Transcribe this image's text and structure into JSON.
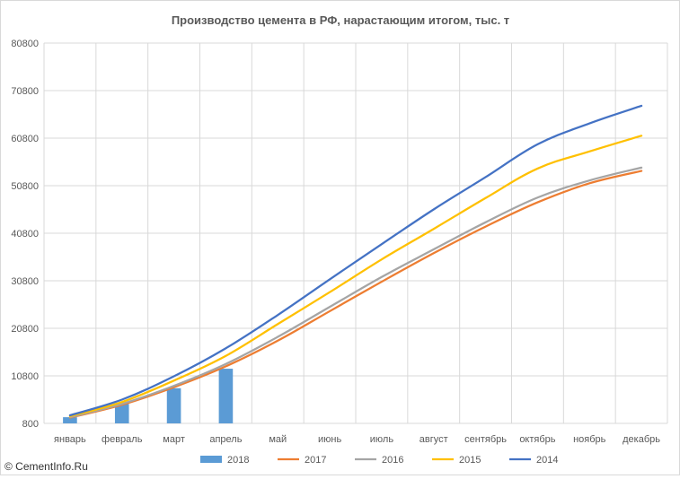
{
  "chart_data": {
    "type": "bar+line",
    "title": "Производство цемента в РФ, нарастающим итогом, тыс. т",
    "categories": [
      "январь",
      "февраль",
      "март",
      "апрель",
      "май",
      "июнь",
      "июль",
      "август",
      "сентябрь",
      "октябрь",
      "ноябрь",
      "декабрь"
    ],
    "y_ticks": [
      "80800",
      "70800",
      "60800",
      "50800",
      "40800",
      "30800",
      "20800",
      "10800",
      "800"
    ],
    "ylim": [
      800,
      80800
    ],
    "grid": true,
    "legend_position": "bottom",
    "series": [
      {
        "name": "2018",
        "type": "bar",
        "color": "#5b9bd5",
        "values": [
          2100,
          4900,
          8200,
          12300,
          null,
          null,
          null,
          null,
          null,
          null,
          null,
          null
        ]
      },
      {
        "name": "2017",
        "type": "line",
        "color": "#ed7d31",
        "values": [
          2000,
          4700,
          8400,
          12800,
          18200,
          24400,
          30600,
          36600,
          42200,
          47300,
          51300,
          53900
        ]
      },
      {
        "name": "2016",
        "type": "line",
        "color": "#a5a5a5",
        "values": [
          2100,
          4900,
          8700,
          13300,
          19000,
          25300,
          31600,
          37400,
          43100,
          48300,
          51900,
          54600
        ]
      },
      {
        "name": "2015",
        "type": "line",
        "color": "#ffc000",
        "values": [
          2300,
          5300,
          9800,
          15000,
          21700,
          28400,
          35300,
          41700,
          48200,
          54400,
          58000,
          61300
        ]
      },
      {
        "name": "2014",
        "type": "line",
        "color": "#4472c4",
        "values": [
          2500,
          5800,
          10700,
          16600,
          23600,
          31100,
          38500,
          45800,
          52600,
          59500,
          63900,
          67600
        ]
      }
    ]
  },
  "watermark": "© CementInfo.Ru"
}
